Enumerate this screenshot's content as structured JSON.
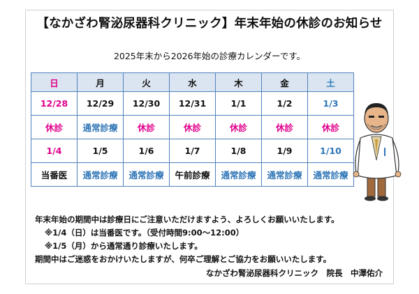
{
  "title": "【なかざわ腎泌尿器科クリニック】年末年始の休診のお知らせ",
  "subtitle": "2025年末から2026年始の診療カレンダーです。",
  "calendar": {
    "headers": [
      {
        "label": "日",
        "color": "sun"
      },
      {
        "label": "月",
        "color": "black"
      },
      {
        "label": "火",
        "color": "black"
      },
      {
        "label": "水",
        "color": "black"
      },
      {
        "label": "木",
        "color": "black"
      },
      {
        "label": "金",
        "color": "black"
      },
      {
        "label": "土",
        "color": "sat"
      }
    ],
    "weeks": [
      {
        "dates": [
          {
            "text": "12/28",
            "color": "red"
          },
          {
            "text": "12/29",
            "color": "black"
          },
          {
            "text": "12/30",
            "color": "black"
          },
          {
            "text": "12/31",
            "color": "black"
          },
          {
            "text": "1/1",
            "color": "black"
          },
          {
            "text": "1/2",
            "color": "black"
          },
          {
            "text": "1/3",
            "color": "blue"
          }
        ],
        "statuses": [
          {
            "text": "休診",
            "color": "red"
          },
          {
            "text": "通常診療",
            "color": "blue"
          },
          {
            "text": "休診",
            "color": "red"
          },
          {
            "text": "休診",
            "color": "red"
          },
          {
            "text": "休診",
            "color": "red"
          },
          {
            "text": "休診",
            "color": "red"
          },
          {
            "text": "休診",
            "color": "red"
          }
        ]
      },
      {
        "dates": [
          {
            "text": "1/4",
            "color": "red"
          },
          {
            "text": "1/5",
            "color": "black"
          },
          {
            "text": "1/6",
            "color": "black"
          },
          {
            "text": "1/7",
            "color": "black"
          },
          {
            "text": "1/8",
            "color": "black"
          },
          {
            "text": "1/9",
            "color": "black"
          },
          {
            "text": "1/10",
            "color": "blue"
          }
        ],
        "statuses": [
          {
            "text": "当番医",
            "color": "black"
          },
          {
            "text": "通常診療",
            "color": "blue"
          },
          {
            "text": "通常診療",
            "color": "blue"
          },
          {
            "text": "午前診療",
            "color": "black"
          },
          {
            "text": "通常診療",
            "color": "blue"
          },
          {
            "text": "通常診療",
            "color": "blue"
          },
          {
            "text": "通常診療",
            "color": "blue"
          }
        ]
      }
    ]
  },
  "notes": {
    "line1": "年末年始の期間中は診療日にご注意いただけますよう、よろしくお願いいたします。",
    "line2": "※1/4（日）は当番医です。（受付時間9:00～12:00）",
    "line3": "※1/5（月）から通常通り診療いたします。",
    "line4": "期間中はご迷惑をおかけいたしますが、何卒ご理解とご協力をお願いいたします。"
  },
  "signature": "なかざわ腎泌尿器科クリニック　院長　中澤佑介",
  "colors": {
    "sun": "#e0008c",
    "sat": "#2c7fb8",
    "accent_blue": "#2e75b6",
    "border": "#4f81bd",
    "header_bg": "#dbe5f1"
  },
  "illustration": "doctor-illustration"
}
